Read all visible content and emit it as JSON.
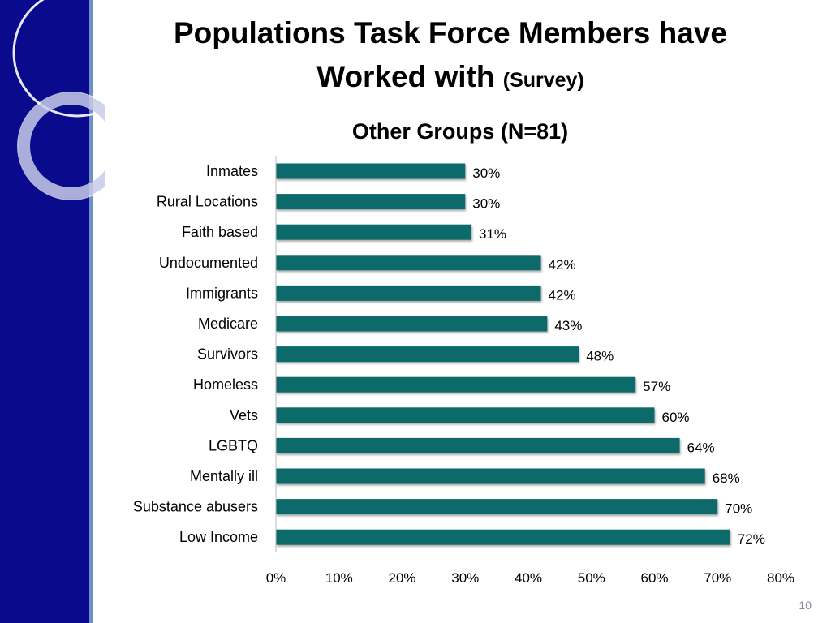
{
  "slide": {
    "title_line1": "Populations Task Force Members have",
    "title_line2": "Worked with",
    "title_suffix": "(Survey)",
    "page_number": "10"
  },
  "colors": {
    "sidebar": "#0a0a8c",
    "bar_fill": "#0f6b6b",
    "text": "#000000"
  },
  "chart_data": {
    "type": "bar",
    "orientation": "horizontal",
    "title": "Other Groups (N=81)",
    "categories": [
      "Inmates",
      "Rural Locations",
      "Faith based",
      "Undocumented",
      "Immigrants",
      "Medicare",
      "Survivors",
      "Homeless",
      "Vets",
      "LGBTQ",
      "Mentally ill",
      "Substance abusers",
      "Low Income"
    ],
    "values": [
      30,
      30,
      31,
      42,
      42,
      43,
      48,
      57,
      60,
      64,
      68,
      70,
      72
    ],
    "data_labels": [
      "30%",
      "30%",
      "31%",
      "42%",
      "42%",
      "43%",
      "48%",
      "57%",
      "60%",
      "64%",
      "68%",
      "70%",
      "72%"
    ],
    "xlim": [
      0,
      80
    ],
    "x_ticks": [
      0,
      10,
      20,
      30,
      40,
      50,
      60,
      70,
      80
    ],
    "x_tick_labels": [
      "0%",
      "10%",
      "20%",
      "30%",
      "40%",
      "50%",
      "60%",
      "70%",
      "80%"
    ],
    "grid": false,
    "legend": "none"
  }
}
